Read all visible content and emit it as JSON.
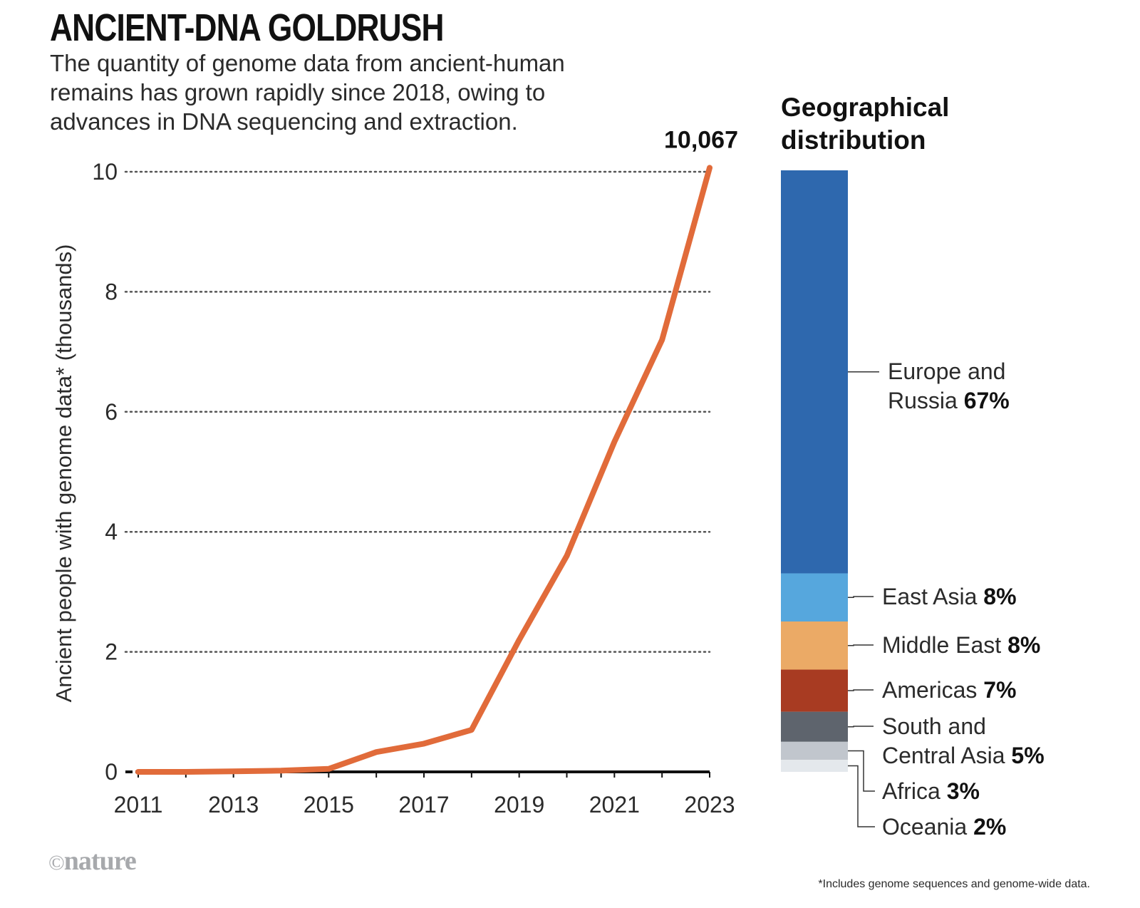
{
  "header": {
    "title": "ANCIENT-DNA GOLDRUSH",
    "subtitle": "The quantity of genome data from ancient-human remains has grown rapidly since 2018, owing to advances in DNA sequencing and extraction."
  },
  "chart_data": [
    {
      "type": "line",
      "title": "ANCIENT-DNA GOLDRUSH",
      "xlabel": "",
      "ylabel": "Ancient people with genome data* (thousands)",
      "x": [
        2011,
        2012,
        2013,
        2014,
        2015,
        2016,
        2017,
        2018,
        2019,
        2020,
        2021,
        2022,
        2023
      ],
      "series": [
        {
          "name": "Ancient people with genome data (thousands)",
          "values": [
            0.0,
            0.0,
            0.01,
            0.02,
            0.05,
            0.33,
            0.47,
            0.7,
            2.2,
            3.6,
            5.5,
            7.2,
            10.067
          ]
        }
      ],
      "xticks": [
        2011,
        2013,
        2015,
        2017,
        2019,
        2021,
        2023
      ],
      "yticks": [
        0,
        2,
        4,
        6,
        8,
        10
      ],
      "xlim": [
        2011,
        2023
      ],
      "ylim": [
        0,
        10
      ],
      "grid": "horizontal-dotted",
      "annotation": {
        "x": 2023,
        "label": "10,067"
      },
      "color": "#e16b3a"
    },
    {
      "type": "bar",
      "stacked": true,
      "title": "Geographical distribution",
      "categories": [
        "Europe and Russia",
        "East Asia",
        "Middle East",
        "Americas",
        "South and Central Asia",
        "Africa",
        "Oceania"
      ],
      "values": [
        67,
        8,
        8,
        7,
        5,
        3,
        2
      ],
      "unit": "%",
      "colors": [
        "#2e68ae",
        "#56a7dd",
        "#ebaa66",
        "#a83b22",
        "#5e646d",
        "#c1c6cd",
        "#e4e8ec"
      ]
    }
  ],
  "distribution": {
    "title_line1": "Geographical",
    "title_line2": "distribution",
    "items": [
      {
        "name": "Europe and",
        "name2": "Russia",
        "pct": "67%"
      },
      {
        "name": "East Asia",
        "pct": "8%"
      },
      {
        "name": "Middle East",
        "pct": "8%"
      },
      {
        "name": "Americas",
        "pct": "7%"
      },
      {
        "name": "South and",
        "name2": "Central Asia",
        "pct": "5%"
      },
      {
        "name": "Africa",
        "pct": "3%"
      },
      {
        "name": "Oceania",
        "pct": "2%"
      }
    ]
  },
  "footnote": "*Includes genome sequences and genome-wide data.",
  "logo": {
    "copyright": "©",
    "text": "nature"
  }
}
